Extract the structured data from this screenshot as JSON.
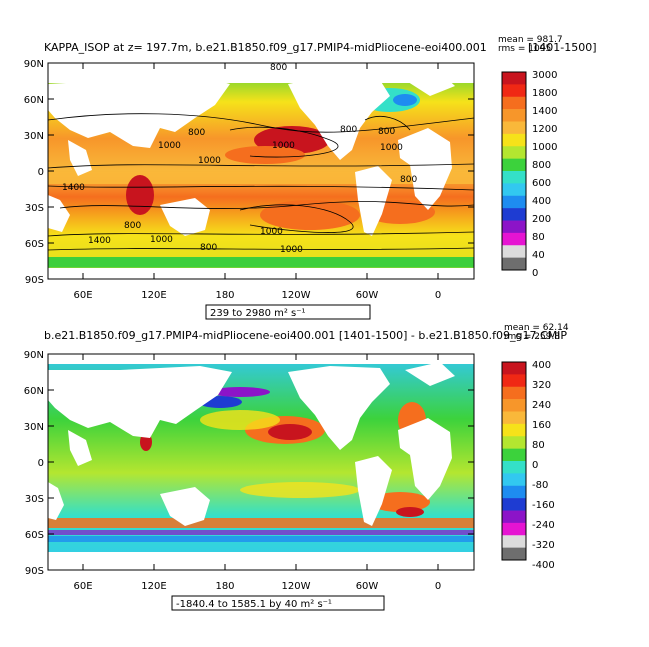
{
  "chart_data": [
    {
      "type": "heatmap",
      "title": "KAPPA_ISOP at z=  197.7m, b.e21.B1850.f09_g17.PMIP4-midPliocene-eoi400.001",
      "period": "[1401-1500]",
      "stats": {
        "mean": "mean = 981.7",
        "rms": "rms = 1095"
      },
      "range_label": "239 to 2980 m² s⁻¹",
      "x_tick_labels": [
        "60E",
        "120E",
        "180",
        "120W",
        "60W",
        "0"
      ],
      "y_tick_labels": [
        "90N",
        "60N",
        "30N",
        "0",
        "30S",
        "60S",
        "90S"
      ],
      "colorbar_labels": [
        "3000",
        "1800",
        "1400",
        "1200",
        "1000",
        "800",
        "600",
        "400",
        "200",
        "80",
        "40",
        "0"
      ],
      "colorbar_colors": [
        "#c8141e",
        "#f02814",
        "#f56e1e",
        "#f7962a",
        "#f9b83a",
        "#f6e21a",
        "#b4e630",
        "#3cd23c",
        "#34e0c8",
        "#32c8f0",
        "#1e8cf0",
        "#1e3cd2",
        "#8c14c8",
        "#e614d2",
        "#dcdcdc",
        "#6e6e6e"
      ],
      "contour_labels": [
        "800",
        "800",
        "1000",
        "1000",
        "1000",
        "1400",
        "800",
        "800",
        "800",
        "1000",
        "1000",
        "1000",
        "800",
        "1000",
        "800",
        "1400"
      ]
    },
    {
      "type": "heatmap",
      "title": "b.e21.B1850.f09_g17.PMIP4-midPliocene-eoi400.001 [1401-1500] - b.e21.B1850.f09_g17.CMIP",
      "stats": {
        "mean": "mean = 62.14",
        "rms": "rms = 259.8"
      },
      "range_label": "-1840.4 to 1585.1 by 40 m² s⁻¹",
      "x_tick_labels": [
        "60E",
        "120E",
        "180",
        "120W",
        "60W",
        "0"
      ],
      "y_tick_labels": [
        "90N",
        "60N",
        "30N",
        "0",
        "30S",
        "60S",
        "90S"
      ],
      "colorbar_labels": [
        "400",
        "320",
        "240",
        "160",
        "80",
        "0",
        "-80",
        "-160",
        "-240",
        "-320",
        "-400"
      ],
      "colorbar_colors": [
        "#c8141e",
        "#f02814",
        "#f56e1e",
        "#f7962a",
        "#f9b83a",
        "#f6e21a",
        "#b4e630",
        "#3cd23c",
        "#34e0c8",
        "#32c8f0",
        "#1e8cf0",
        "#1e3cd2",
        "#8c14c8",
        "#e614d2",
        "#dcdcdc",
        "#6e6e6e"
      ]
    }
  ]
}
